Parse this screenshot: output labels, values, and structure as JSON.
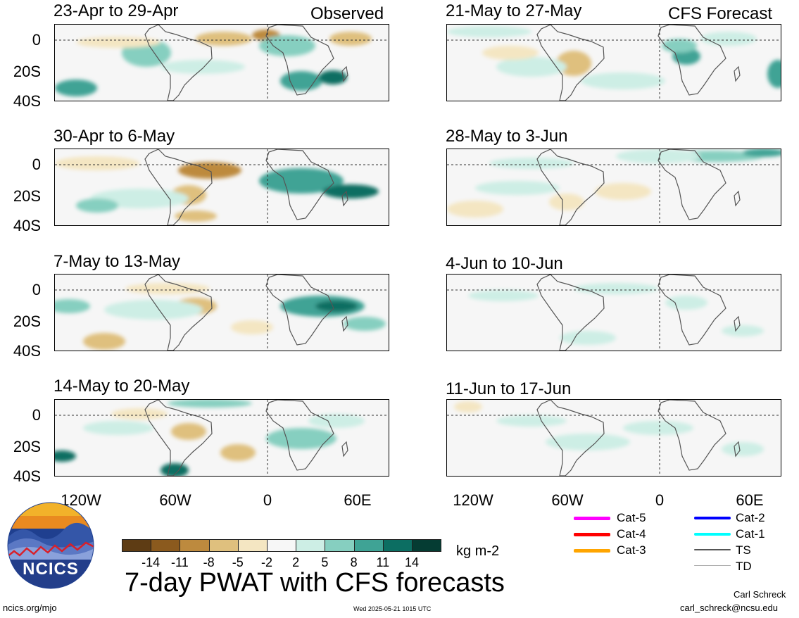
{
  "chart_data": {
    "type": "heatmap",
    "title": "7-day PWAT with CFS forecasts",
    "units": "kg m-2",
    "y_tick_labels": [
      "0",
      "20S",
      "40S"
    ],
    "x_tick_labels": [
      "120W",
      "60W",
      "0",
      "60E"
    ],
    "left_column_header": "Observed",
    "right_column_header": "CFS Forecast",
    "panels": [
      {
        "period": "23-Apr to 29-Apr",
        "column": "observed"
      },
      {
        "period": "30-Apr to 6-May",
        "column": "observed"
      },
      {
        "period": "7-May to 13-May",
        "column": "observed"
      },
      {
        "period": "14-May to 20-May",
        "column": "observed"
      },
      {
        "period": "21-May to 27-May",
        "column": "forecast"
      },
      {
        "period": "28-May to 3-Jun",
        "column": "forecast"
      },
      {
        "period": "4-Jun to 10-Jun",
        "column": "forecast"
      },
      {
        "period": "11-Jun to 17-Jun",
        "column": "forecast"
      }
    ],
    "colorbar": {
      "ticks": [
        "-14",
        "-11",
        "-8",
        "-5",
        "-2",
        "2",
        "5",
        "8",
        "11",
        "14"
      ],
      "colors": [
        "#5e3c14",
        "#8b5a1e",
        "#bd8a3e",
        "#dfc07e",
        "#f4e6c2",
        "#f7f7f7",
        "#cdeee5",
        "#86cfc0",
        "#3fa395",
        "#0c6e62",
        "#053c33"
      ]
    },
    "track_legend": [
      {
        "label": "Cat-5",
        "color": "#ff00ff"
      },
      {
        "label": "Cat-4",
        "color": "#ff0000"
      },
      {
        "label": "Cat-3",
        "color": "#ffa500"
      },
      {
        "label": "Cat-2",
        "color": "#0000ff"
      },
      {
        "label": "Cat-1",
        "color": "#00ffff"
      },
      {
        "label": "TS",
        "color": "#555555"
      },
      {
        "label": "TD",
        "color": "#aaaaaa"
      }
    ]
  },
  "branding": {
    "logo_text": "NCICS",
    "site": "ncics.org/mjo",
    "timestamp": "Wed 2025-05-21 1015 UTC",
    "author": "Carl Schreck",
    "email": "carl_schreck@ncsu.edu"
  }
}
